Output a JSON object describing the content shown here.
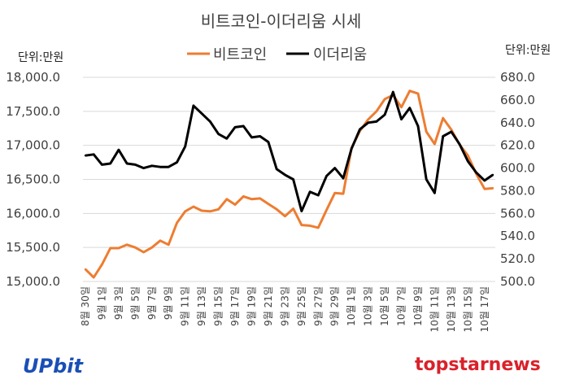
{
  "chart_data": {
    "type": "line",
    "title": "비트코인-이더리움 시세",
    "unit_left": "단위:만원",
    "unit_right": "단위:만원",
    "y_left": {
      "min": 15000,
      "max": 18000,
      "step": 500,
      "tick_labels": [
        "15,000.0",
        "15,500.0",
        "16,000.0",
        "16,500.0",
        "17,000.0",
        "17,500.0",
        "18,000.0"
      ]
    },
    "y_right": {
      "min": 500,
      "max": 680,
      "step": 20,
      "tick_labels": [
        "500.0",
        "520.0",
        "540.0",
        "560.0",
        "580.0",
        "600.0",
        "620.0",
        "640.0",
        "660.0",
        "680.0"
      ]
    },
    "x_labels": [
      "8월 30일",
      "9월 1일",
      "9월 3일",
      "9월 5일",
      "9월 7일",
      "9월 9일",
      "9월 11일",
      "9월 13일",
      "9월 15일",
      "9월 17일",
      "9월 19일",
      "9월 21일",
      "9월 23일",
      "9월 25일",
      "9월 27일",
      "9월 29일",
      "10월 1일",
      "10월 3일",
      "10월 5일",
      "10월 7일",
      "10월 9일",
      "10월 11일",
      "10월 13일",
      "10월 15일",
      "10월 17일"
    ],
    "series": [
      {
        "name": "비트코인",
        "axis": "left",
        "color": "#ed7d31",
        "values": [
          15180,
          15060,
          15250,
          15490,
          15490,
          15540,
          15500,
          15430,
          15500,
          15600,
          15540,
          15860,
          16030,
          16100,
          16040,
          16030,
          16060,
          16210,
          16130,
          16250,
          16210,
          16220,
          16140,
          16060,
          15960,
          16070,
          15830,
          15820,
          15790,
          16050,
          16300,
          16290,
          16960,
          17210,
          17380,
          17500,
          17680,
          17740,
          17560,
          17800,
          17760,
          17200,
          17020,
          17400,
          17230,
          17010,
          16850,
          16580,
          16360,
          16370
        ]
      },
      {
        "name": "이더리움",
        "axis": "right",
        "color": "#000000",
        "values": [
          611,
          612,
          603,
          604,
          616,
          604,
          603,
          600,
          602,
          601,
          601,
          605,
          619,
          655,
          648,
          641,
          630,
          626,
          636,
          637,
          627,
          628,
          623,
          599,
          594,
          590,
          562,
          579,
          576,
          593,
          600,
          591,
          617,
          634,
          640,
          641,
          647,
          667,
          643,
          653,
          637,
          590,
          578,
          628,
          632,
          621,
          606,
          596,
          589,
          594
        ]
      }
    ]
  },
  "branding": {
    "left": "UPbit",
    "right": "topstarnews"
  }
}
